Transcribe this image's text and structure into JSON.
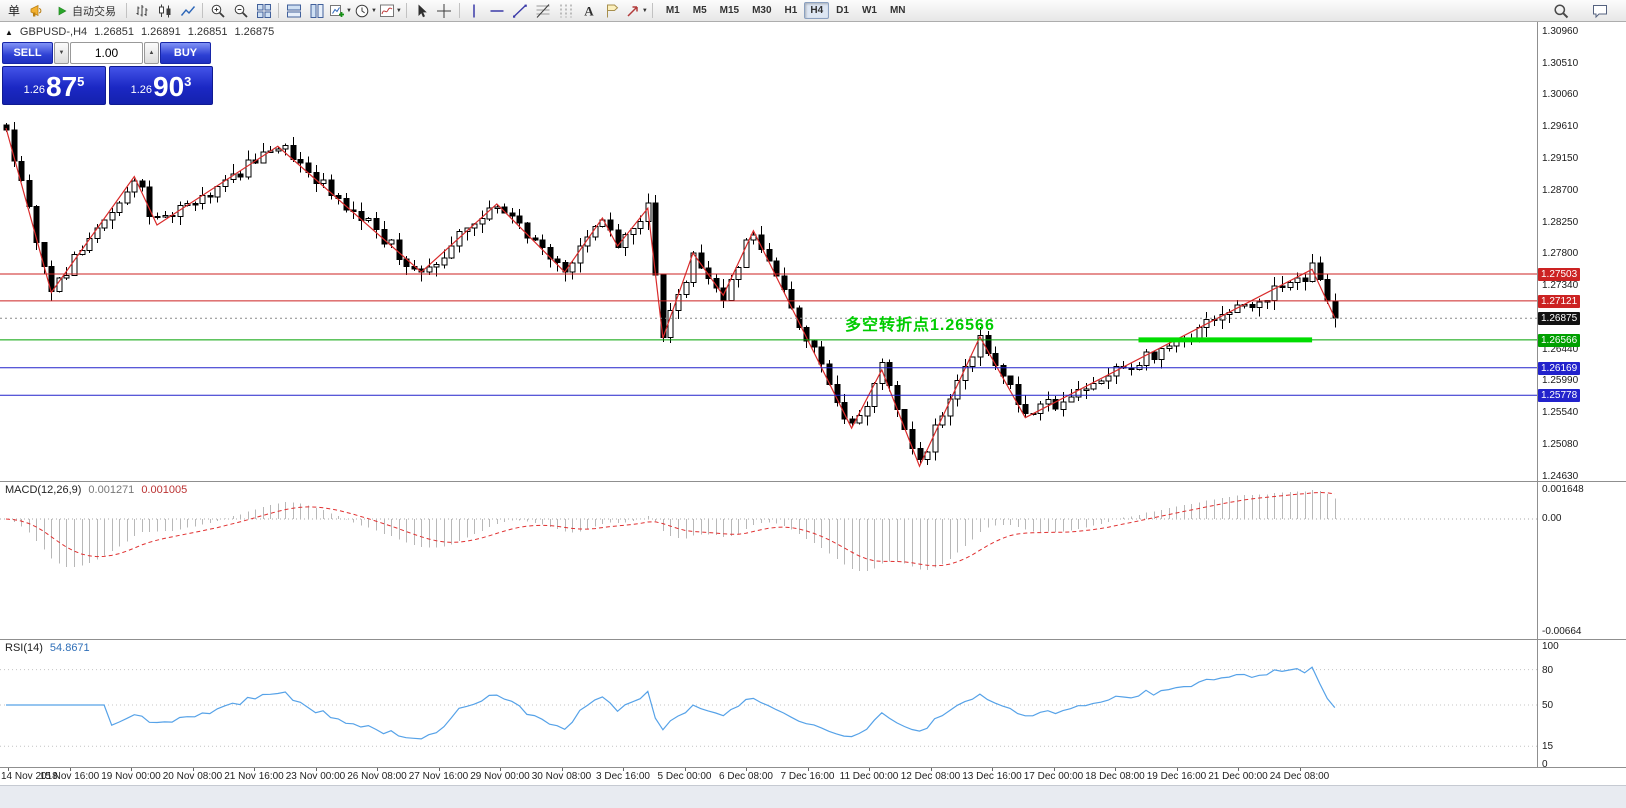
{
  "toolbar": {
    "items": [
      {
        "type": "label",
        "name": "menu-order-label",
        "text": "单"
      },
      {
        "type": "icon",
        "name": "megaphone-icon"
      },
      {
        "type": "button",
        "name": "auto-trading-button",
        "icon": "play-icon",
        "text": "自动交易"
      },
      {
        "type": "sep"
      },
      {
        "type": "icon",
        "name": "bar-chart-icon"
      },
      {
        "type": "icon",
        "name": "candlestick-chart-icon"
      },
      {
        "type": "icon",
        "name": "line-chart-icon"
      },
      {
        "type": "sep"
      },
      {
        "type": "icon",
        "name": "zoom-in-icon"
      },
      {
        "type": "icon",
        "name": "zoom-out-icon"
      },
      {
        "type": "icon",
        "name": "tile-windows-icon"
      },
      {
        "type": "sep"
      },
      {
        "type": "icon",
        "name": "tile-horizontal-icon"
      },
      {
        "type": "icon",
        "name": "tile-vertical-icon"
      },
      {
        "type": "icon",
        "name": "new-order-icon",
        "caret": true
      },
      {
        "type": "icon",
        "name": "period-icon",
        "caret": true
      },
      {
        "type": "icon",
        "name": "template-icon",
        "caret": true
      },
      {
        "type": "sep"
      },
      {
        "type": "icon",
        "name": "cursor-icon"
      },
      {
        "type": "icon",
        "name": "crosshair-icon"
      },
      {
        "type": "sep"
      },
      {
        "type": "icon",
        "name": "vertical-line-icon"
      },
      {
        "type": "icon",
        "name": "horizontal-line-icon"
      },
      {
        "type": "icon",
        "name": "trendline-icon"
      },
      {
        "type": "icon",
        "name": "fibonacci-icon"
      },
      {
        "type": "icon",
        "name": "cycle-lines-icon"
      },
      {
        "type": "icon",
        "name": "text-icon"
      },
      {
        "type": "icon",
        "name": "label-icon"
      },
      {
        "type": "icon",
        "name": "arrows-icon",
        "caret": true
      },
      {
        "type": "sep"
      }
    ],
    "timeframes": [
      "M1",
      "M5",
      "M15",
      "M30",
      "H1",
      "H4",
      "D1",
      "W1",
      "MN"
    ],
    "active_timeframe": "H4",
    "right_icons": [
      "search-icon",
      "chat-icon"
    ]
  },
  "symbol_header": {
    "arrow": "▲",
    "symbol": "GBPUSD-,H4",
    "open": "1.26851",
    "high": "1.26891",
    "low": "1.26851",
    "close": "1.26875"
  },
  "trade_panel": {
    "sell_label": "SELL",
    "buy_label": "BUY",
    "volume": "1.00",
    "sell": {
      "prefix": "1.26",
      "big": "87",
      "sup": "5"
    },
    "buy": {
      "prefix": "1.26",
      "big": "90",
      "sup": "3"
    }
  },
  "annotation": {
    "text": "多空转折点1.26566",
    "color": "#00CC00"
  },
  "chart_data": {
    "type": "candlestick",
    "symbol": "GBPUSD-",
    "timeframe": "H4",
    "bar_count": 177,
    "seed": 20181224,
    "price_range": {
      "top": 1.3096,
      "bottom": 1.2463
    },
    "zigzag_pivots": [
      [
        0,
        1.2958
      ],
      [
        6,
        1.2724
      ],
      [
        17,
        1.2889
      ],
      [
        20,
        1.282
      ],
      [
        36,
        1.2932
      ],
      [
        55,
        1.2753
      ],
      [
        65,
        1.285
      ],
      [
        74,
        1.2753
      ],
      [
        79,
        1.283
      ],
      [
        81,
        1.279
      ],
      [
        85,
        1.2844
      ],
      [
        87,
        1.2659
      ],
      [
        91,
        1.278
      ],
      [
        95,
        1.272
      ],
      [
        99,
        1.2812
      ],
      [
        112,
        1.2531
      ],
      [
        116,
        1.2614
      ],
      [
        121,
        1.2477
      ],
      [
        129,
        1.2661
      ],
      [
        135,
        1.2546
      ],
      [
        173,
        1.2757
      ],
      [
        176,
        1.2688
      ]
    ],
    "horizontal_lines": [
      {
        "price": 1.27503,
        "color": "#cc2222",
        "label": "1.27503"
      },
      {
        "price": 1.27121,
        "color": "#cc2222",
        "label": "1.27121"
      },
      {
        "price": 1.26566,
        "color": "#00A000",
        "label": "1.26566"
      },
      {
        "price": 1.26169,
        "color": "#2222cc",
        "label": "1.26169"
      },
      {
        "price": 1.25778,
        "color": "#2222cc",
        "label": "1.25778"
      }
    ],
    "current_price": {
      "value": 1.26875,
      "label": "1.26875",
      "color": "#111111"
    },
    "green_segment": {
      "price": 1.26566,
      "bar_from": 150,
      "bar_to": 173,
      "color": "#00DD00"
    },
    "price_axis": {
      "ticks": [
        "1.30960",
        "1.30510",
        "1.30060",
        "1.29610",
        "1.29150",
        "1.28700",
        "1.28250",
        "1.27800",
        "1.27340",
        "1.26440",
        "1.25990",
        "1.25540",
        "1.25080",
        "1.24630"
      ]
    },
    "time_axis": [
      "14 Nov 2018",
      "15 Nov 16:00",
      "19 Nov 00:00",
      "20 Nov 08:00",
      "21 Nov 16:00",
      "23 Nov 00:00",
      "26 Nov 08:00",
      "27 Nov 16:00",
      "29 Nov 00:00",
      "30 Nov 08:00",
      "3 Dec 16:00",
      "5 Dec 00:00",
      "6 Dec 08:00",
      "7 Dec 16:00",
      "11 Dec 00:00",
      "12 Dec 08:00",
      "13 Dec 16:00",
      "17 Dec 00:00",
      "18 Dec 08:00",
      "19 Dec 16:00",
      "21 Dec 00:00",
      "24 Dec 08:00"
    ],
    "macd": {
      "name": "MACD(12,26,9)",
      "value_main": "0.001271",
      "value_signal": "0.001005",
      "axis": [
        "0.001648",
        "0.00",
        "-0.00664"
      ],
      "params": [
        12,
        26,
        9
      ]
    },
    "rsi": {
      "name": "RSI(14)",
      "value": "54.8671",
      "axis": [
        "100",
        "80",
        "50",
        "15",
        "0"
      ],
      "levels": [
        80,
        50,
        15
      ],
      "period": 14
    }
  }
}
